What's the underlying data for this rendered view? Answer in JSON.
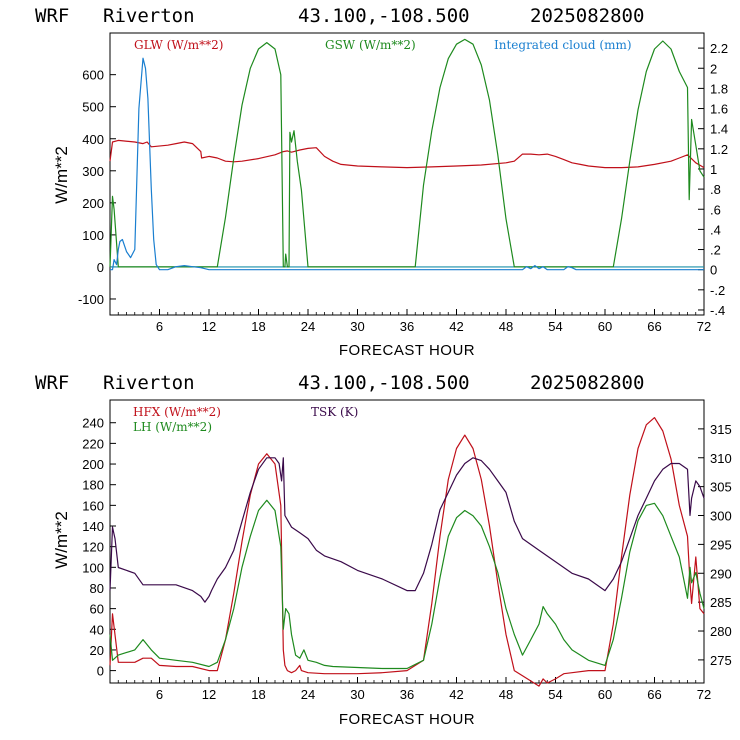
{
  "colors": {
    "red": "#c0101a",
    "green": "#1e8a1e",
    "blue": "#1a7fd0",
    "purple": "#3a0a4a",
    "zero_line": "#1a8fa8"
  },
  "panels": [
    {
      "header": {
        "model": "WRF",
        "site": "Riverton",
        "coords": "43.100,-108.500",
        "init": "2025082800"
      },
      "xlabel": "FORECAST HOUR",
      "ylabel": "W/m**2",
      "legend": [
        {
          "text": "GLW (W/m**2)",
          "color": "#c0101a"
        },
        {
          "text": "GSW (W/m**2)",
          "color": "#1e8a1e"
        },
        {
          "text": "Integrated cloud (mm)",
          "color": "#1a7fd0"
        }
      ],
      "x_ticks": [
        "6",
        "12",
        "18",
        "24",
        "30",
        "36",
        "42",
        "48",
        "54",
        "60",
        "66",
        "72"
      ],
      "left_ticks": [
        "-100",
        "0",
        "100",
        "200",
        "300",
        "400",
        "500",
        "600"
      ],
      "right_ticks": [
        "-.4",
        "-.2",
        "0",
        ".2",
        ".4",
        ".6",
        ".8",
        "1",
        "1.2",
        "1.4",
        "1.6",
        "1.8",
        "2",
        "2.2"
      ]
    },
    {
      "header": {
        "model": "WRF",
        "site": "Riverton",
        "coords": "43.100,-108.500",
        "init": "2025082800"
      },
      "xlabel": "FORECAST HOUR",
      "ylabel": "W/m**2",
      "legend": [
        {
          "text": "HFX (W/m**2)",
          "color": "#c0101a"
        },
        {
          "text": "LH  (W/m**2)",
          "color": "#1e8a1e"
        },
        {
          "text": "TSK (K)",
          "color": "#3a0a4a"
        }
      ],
      "x_ticks": [
        "6",
        "12",
        "18",
        "24",
        "30",
        "36",
        "42",
        "48",
        "54",
        "60",
        "66",
        "72"
      ],
      "left_ticks": [
        "0",
        "20",
        "40",
        "60",
        "80",
        "100",
        "120",
        "140",
        "160",
        "180",
        "200",
        "220",
        "240"
      ],
      "right_ticks": [
        "275",
        "280",
        "285",
        "290",
        "295",
        "300",
        "305",
        "310",
        "315"
      ]
    }
  ],
  "chart_data": [
    {
      "type": "line",
      "xlabel": "FORECAST HOUR",
      "ylabel": "W/m**2",
      "xlim": [
        0,
        72
      ],
      "ylim": [
        -150,
        730
      ],
      "y2lim": [
        -0.45,
        2.35
      ],
      "grid": false,
      "legend_position": "top",
      "series": [
        {
          "name": "GLW (W/m**2)",
          "axis": "left",
          "color": "#c0101a",
          "x": [
            0,
            0.3,
            1,
            3,
            4,
            4.5,
            5,
            7,
            8,
            9,
            10,
            11,
            11.1,
            12,
            13,
            14,
            15,
            16,
            18,
            20,
            21,
            21.5,
            22,
            23,
            24,
            25,
            26,
            27,
            28,
            30,
            33,
            36,
            39,
            42,
            45,
            48,
            49,
            50,
            51,
            52,
            53,
            54,
            55,
            56,
            57,
            58,
            60,
            62,
            64,
            66,
            68,
            69,
            70,
            71,
            72
          ],
          "y": [
            330,
            390,
            395,
            390,
            385,
            390,
            375,
            380,
            385,
            390,
            385,
            360,
            340,
            345,
            340,
            330,
            328,
            330,
            338,
            350,
            360,
            362,
            358,
            365,
            370,
            372,
            345,
            330,
            320,
            315,
            312,
            310,
            312,
            315,
            318,
            325,
            330,
            352,
            352,
            350,
            352,
            345,
            335,
            325,
            320,
            315,
            310,
            310,
            312,
            320,
            330,
            340,
            350,
            325,
            310
          ]
        },
        {
          "name": "GSW (W/m**2)",
          "axis": "left",
          "color": "#1e8a1e",
          "x": [
            0,
            0.3,
            0.5,
            1,
            13,
            14,
            15,
            16,
            17,
            18,
            19,
            20,
            20.7,
            21,
            21.2,
            21.3,
            21.5,
            21.7,
            21.8,
            22,
            22.3,
            22.7,
            23.2,
            24,
            24.1,
            37,
            38,
            39,
            40,
            41,
            42,
            43,
            44,
            45,
            46,
            47,
            48,
            49,
            50,
            61,
            62,
            63,
            64,
            65,
            66,
            67,
            68,
            69,
            70,
            70.2,
            70.5,
            71,
            71.5,
            72
          ],
          "y": [
            0,
            220,
            180,
            0,
            0,
            155,
            340,
            505,
            620,
            680,
            700,
            680,
            600,
            0,
            0,
            40,
            0,
            0,
            420,
            390,
            425,
            330,
            240,
            0,
            0,
            0,
            255,
            425,
            560,
            650,
            695,
            710,
            695,
            630,
            520,
            350,
            150,
            0,
            0,
            0,
            150,
            330,
            490,
            610,
            680,
            705,
            680,
            610,
            560,
            210,
            460,
            380,
            300,
            280
          ]
        },
        {
          "name": "Integrated cloud (mm)",
          "axis": "right",
          "color": "#1a7fd0",
          "x": [
            0,
            0.3,
            0.5,
            0.8,
            1,
            1.2,
            1.5,
            2,
            2.5,
            3,
            3.5,
            4,
            4.3,
            4.6,
            5,
            5.3,
            5.6,
            6,
            6.3,
            7,
            8,
            9,
            10,
            11,
            12,
            50,
            50.5,
            51,
            51.5,
            52,
            52.5,
            53,
            55,
            55.5,
            56,
            56.5,
            72
          ],
          "y": [
            0,
            0,
            0.1,
            0.05,
            0.2,
            0.28,
            0.3,
            0.18,
            0.12,
            0.2,
            1.6,
            2.1,
            2.0,
            1.7,
            0.8,
            0.3,
            0.05,
            0,
            0,
            0,
            0.03,
            0.04,
            0.03,
            0.02,
            0,
            0,
            0.03,
            0.01,
            0.04,
            0.01,
            0.03,
            0,
            0,
            0.03,
            0.02,
            0,
            0
          ]
        }
      ]
    },
    {
      "type": "line",
      "xlabel": "FORECAST HOUR",
      "ylabel": "W/m**2",
      "xlim": [
        0,
        72
      ],
      "ylim": [
        -12,
        262
      ],
      "y2lim": [
        271,
        320
      ],
      "grid": false,
      "legend_position": "top-left",
      "series": [
        {
          "name": "HFX (W/m**2)",
          "axis": "left",
          "color": "#c0101a",
          "x": [
            0,
            0.3,
            1,
            3,
            4,
            5,
            6,
            8,
            10,
            12,
            13,
            14,
            15,
            16,
            17,
            18,
            19,
            20,
            20.7,
            21,
            21.2,
            21.5,
            22,
            22.5,
            23,
            23.2,
            24,
            26,
            28,
            30,
            33,
            36,
            38,
            39,
            40,
            41,
            42,
            43,
            44,
            45,
            46,
            47,
            48,
            49,
            50,
            52,
            52.5,
            53,
            54,
            55,
            56,
            58,
            60,
            61,
            62,
            63,
            64,
            65,
            66,
            67,
            68,
            69,
            70,
            70.3,
            70.5,
            71,
            71.5,
            72
          ],
          "y": [
            5,
            55,
            8,
            8,
            12,
            12,
            5,
            4,
            4,
            0,
            0,
            30,
            75,
            125,
            170,
            200,
            210,
            200,
            160,
            20,
            5,
            0,
            -2,
            0,
            5,
            0,
            -2,
            -3,
            -3,
            -3,
            -2,
            0,
            10,
            65,
            130,
            185,
            215,
            228,
            215,
            185,
            140,
            85,
            35,
            0,
            -5,
            -15,
            -8,
            -12,
            -8,
            -3,
            -2,
            0,
            0,
            45,
            110,
            170,
            215,
            238,
            245,
            232,
            205,
            160,
            130,
            85,
            65,
            110,
            60,
            55
          ]
        },
        {
          "name": "LH  (W/m**2)",
          "axis": "left",
          "color": "#1e8a1e",
          "x": [
            0,
            0.3,
            1,
            3,
            4,
            5,
            6,
            8,
            10,
            12,
            13,
            14,
            15,
            16,
            17,
            18,
            19,
            20,
            20.7,
            21,
            21.3,
            21.7,
            22,
            22.5,
            23,
            23.5,
            24,
            25,
            26,
            27,
            30,
            33,
            36,
            38,
            39,
            40,
            41,
            42,
            43,
            44,
            45,
            46,
            47,
            48,
            49,
            50,
            51,
            52,
            52.5,
            53,
            54,
            55,
            56,
            58,
            60,
            61,
            62,
            63,
            64,
            65,
            66,
            67,
            68,
            69,
            70,
            70.3,
            70.5,
            71,
            71.5,
            72
          ],
          "y": [
            35,
            10,
            15,
            20,
            30,
            20,
            12,
            10,
            8,
            4,
            8,
            30,
            60,
            100,
            130,
            155,
            165,
            155,
            120,
            40,
            60,
            55,
            35,
            15,
            12,
            20,
            10,
            8,
            5,
            4,
            3,
            2,
            2,
            10,
            45,
            90,
            130,
            148,
            155,
            150,
            140,
            120,
            95,
            60,
            35,
            15,
            30,
            45,
            62,
            55,
            45,
            30,
            20,
            10,
            5,
            30,
            70,
            115,
            145,
            160,
            162,
            150,
            130,
            110,
            70,
            100,
            85,
            95,
            75,
            60
          ]
        },
        {
          "name": "TSK (K)",
          "axis": "right",
          "color": "#3a0a4a",
          "x": [
            0,
            0.3,
            0.6,
            1,
            3,
            4,
            6,
            8,
            10,
            11,
            11.5,
            12,
            12.3,
            13,
            14,
            15,
            16,
            17,
            18,
            19,
            20,
            20.5,
            20.8,
            21,
            21.2,
            21.6,
            22,
            23,
            24,
            25,
            26,
            28,
            30,
            33,
            36,
            37,
            38,
            39,
            40,
            41,
            42,
            43,
            44,
            45,
            46,
            47,
            48,
            49,
            50,
            52,
            54,
            56,
            58,
            60,
            61,
            62,
            63,
            64,
            65,
            66,
            67,
            68,
            69,
            70,
            70.3,
            70.5,
            71,
            71.5,
            72
          ],
          "y": [
            287,
            298,
            296,
            291,
            290,
            288,
            288,
            288,
            287,
            286,
            285,
            286,
            287,
            289,
            291,
            294,
            299,
            304,
            308,
            310,
            310,
            309,
            306,
            310,
            300,
            299,
            298,
            297,
            296,
            294,
            293,
            292,
            290.5,
            289,
            287,
            287,
            290,
            295,
            301,
            304,
            307,
            309,
            310,
            309.5,
            308,
            306,
            304,
            299,
            296,
            294,
            292,
            290,
            289,
            287,
            289,
            292,
            296,
            300,
            303,
            306,
            308,
            309,
            309,
            308,
            300,
            303,
            306,
            305,
            303
          ]
        }
      ]
    }
  ]
}
